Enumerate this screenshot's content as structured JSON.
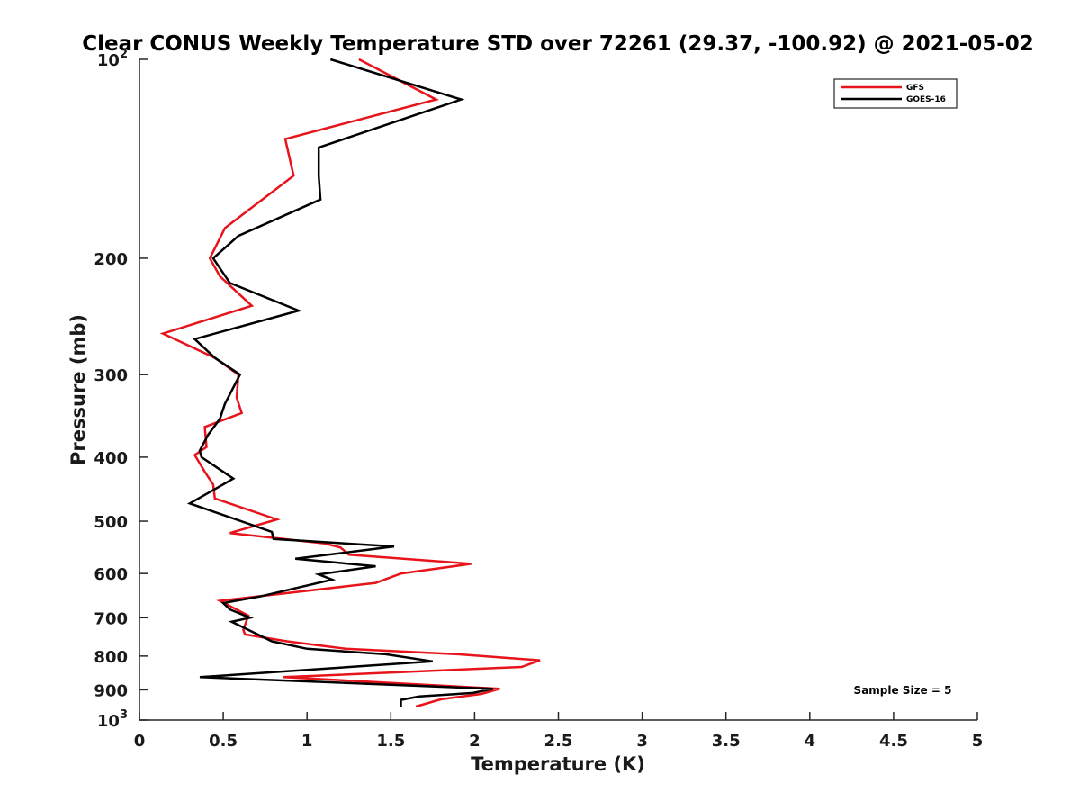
{
  "chart_data": {
    "type": "line",
    "title": "Clear CONUS Weekly Temperature STD over 72261 (29.37, -100.92) @ 2021-05-02",
    "xlabel": "Temperature (K)",
    "ylabel": "Pressure (mb)",
    "xlim": [
      0,
      5
    ],
    "ylim": [
      100,
      1000
    ],
    "y_scale": "log",
    "y_reversed": true,
    "x_ticks": [
      "0",
      "0.5",
      "1",
      "1.5",
      "2",
      "2.5",
      "3",
      "3.5",
      "4",
      "4.5",
      "5"
    ],
    "y_ticks": [
      {
        "value": 100,
        "base": "10",
        "exp": "2"
      },
      {
        "value": 200,
        "label": "200"
      },
      {
        "value": 300,
        "label": "300"
      },
      {
        "value": 400,
        "label": "400"
      },
      {
        "value": 500,
        "label": "500"
      },
      {
        "value": 600,
        "label": "600"
      },
      {
        "value": 700,
        "label": "700"
      },
      {
        "value": 800,
        "label": "800"
      },
      {
        "value": 900,
        "label": "900"
      },
      {
        "value": 1000,
        "base": "10",
        "exp": "3"
      }
    ],
    "grid": false,
    "legend_position": "top-right",
    "annotation": "Sample Size = 5",
    "series": [
      {
        "name": "GFS",
        "color": "#e8141c",
        "points": [
          [
            1.31,
            100
          ],
          [
            1.77,
            115
          ],
          [
            0.87,
            132
          ],
          [
            0.92,
            150
          ],
          [
            0.51,
            180
          ],
          [
            0.42,
            200
          ],
          [
            0.48,
            213
          ],
          [
            0.67,
            236
          ],
          [
            0.14,
            260
          ],
          [
            0.45,
            283
          ],
          [
            0.59,
            300
          ],
          [
            0.58,
            325
          ],
          [
            0.61,
            343
          ],
          [
            0.39,
            360
          ],
          [
            0.4,
            386
          ],
          [
            0.33,
            397
          ],
          [
            0.39,
            421
          ],
          [
            0.44,
            440
          ],
          [
            0.45,
            462
          ],
          [
            0.82,
            497
          ],
          [
            0.54,
            521
          ],
          [
            1.1,
            540
          ],
          [
            1.2,
            548
          ],
          [
            1.25,
            562
          ],
          [
            1.98,
            580
          ],
          [
            1.56,
            600
          ],
          [
            1.41,
            620
          ],
          [
            0.48,
            660
          ],
          [
            0.65,
            695
          ],
          [
            0.62,
            730
          ],
          [
            0.63,
            742
          ],
          [
            0.88,
            760
          ],
          [
            1.23,
            780
          ],
          [
            1.9,
            795
          ],
          [
            2.39,
            812
          ],
          [
            2.28,
            831
          ],
          [
            0.86,
            861
          ],
          [
            2.15,
            897
          ],
          [
            2.04,
            913
          ],
          [
            1.8,
            930
          ],
          [
            1.65,
            954
          ]
        ]
      },
      {
        "name": "GOES-16",
        "color": "#000000",
        "points": [
          [
            1.14,
            100
          ],
          [
            1.92,
            115
          ],
          [
            1.07,
            136
          ],
          [
            1.07,
            150
          ],
          [
            1.08,
            163
          ],
          [
            0.59,
            185
          ],
          [
            0.44,
            200
          ],
          [
            0.54,
            218
          ],
          [
            0.95,
            240
          ],
          [
            0.33,
            265
          ],
          [
            0.45,
            283
          ],
          [
            0.6,
            300
          ],
          [
            0.51,
            332
          ],
          [
            0.48,
            350
          ],
          [
            0.41,
            370
          ],
          [
            0.36,
            391
          ],
          [
            0.37,
            400
          ],
          [
            0.56,
            431
          ],
          [
            0.3,
            470
          ],
          [
            0.79,
            519
          ],
          [
            0.8,
            532
          ],
          [
            1.52,
            546
          ],
          [
            0.93,
            570
          ],
          [
            1.41,
            585
          ],
          [
            1.07,
            602
          ],
          [
            1.15,
            613
          ],
          [
            0.72,
            650
          ],
          [
            0.5,
            665
          ],
          [
            0.54,
            680
          ],
          [
            0.66,
            700
          ],
          [
            0.55,
            710
          ],
          [
            0.79,
            760
          ],
          [
            1.0,
            780
          ],
          [
            1.47,
            795
          ],
          [
            1.75,
            815
          ],
          [
            0.36,
            861
          ],
          [
            2.11,
            897
          ],
          [
            1.99,
            910
          ],
          [
            1.67,
            921
          ],
          [
            1.56,
            932
          ],
          [
            1.56,
            954
          ]
        ]
      }
    ]
  }
}
